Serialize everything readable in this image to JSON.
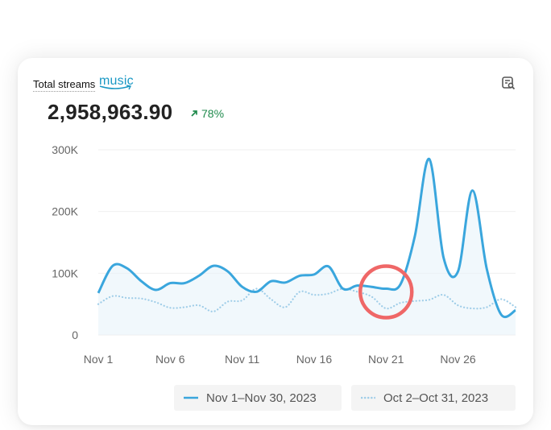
{
  "header": {
    "label": "Total streams",
    "logo_text": "music",
    "total": "2,958,963.90",
    "change": "78%"
  },
  "colors": {
    "current": "#3aa6dd",
    "previous": "#9fcde8",
    "fill": "#e8f3fa",
    "highlight_circle": "#ef6767",
    "positive": "#1f8a4c"
  },
  "icons": {
    "export": "export-report-icon",
    "trend": "arrow-up-right-icon"
  },
  "chart_data": {
    "type": "line",
    "x": [
      "Nov 1",
      "Nov 2",
      "Nov 3",
      "Nov 4",
      "Nov 5",
      "Nov 6",
      "Nov 7",
      "Nov 8",
      "Nov 9",
      "Nov 10",
      "Nov 11",
      "Nov 12",
      "Nov 13",
      "Nov 14",
      "Nov 15",
      "Nov 16",
      "Nov 17",
      "Nov 18",
      "Nov 19",
      "Nov 20",
      "Nov 21",
      "Nov 22",
      "Nov 23",
      "Nov 24",
      "Nov 25",
      "Nov 26",
      "Nov 27",
      "Nov 28",
      "Nov 29",
      "Nov 30"
    ],
    "xticks": [
      "Nov 1",
      "Nov 6",
      "Nov 11",
      "Nov 16",
      "Nov 21",
      "Nov 26"
    ],
    "yticks": [
      "0",
      "100K",
      "200K",
      "300K"
    ],
    "ylim": [
      0,
      300000
    ],
    "grid": true,
    "legend_position": "bottom-right",
    "series": [
      {
        "name": "Nov 1–Nov 30, 2023",
        "style": "solid",
        "values": [
          68000,
          112000,
          108000,
          87000,
          73000,
          84000,
          84000,
          96000,
          112000,
          103000,
          78000,
          70000,
          87000,
          85000,
          96000,
          98000,
          111000,
          75000,
          80000,
          78000,
          75000,
          82000,
          160000,
          285000,
          125000,
          103000,
          234000,
          107000,
          33000,
          40000
        ]
      },
      {
        "name": "Oct 2–Oct 31, 2023",
        "style": "dotted",
        "values": [
          50000,
          63000,
          60000,
          59000,
          53000,
          44000,
          45000,
          48000,
          38000,
          54000,
          56000,
          75000,
          58000,
          45000,
          70000,
          65000,
          67000,
          75000,
          70000,
          62000,
          43000,
          52000,
          55000,
          57000,
          65000,
          48000,
          43000,
          45000,
          58000,
          45000
        ]
      }
    ]
  }
}
